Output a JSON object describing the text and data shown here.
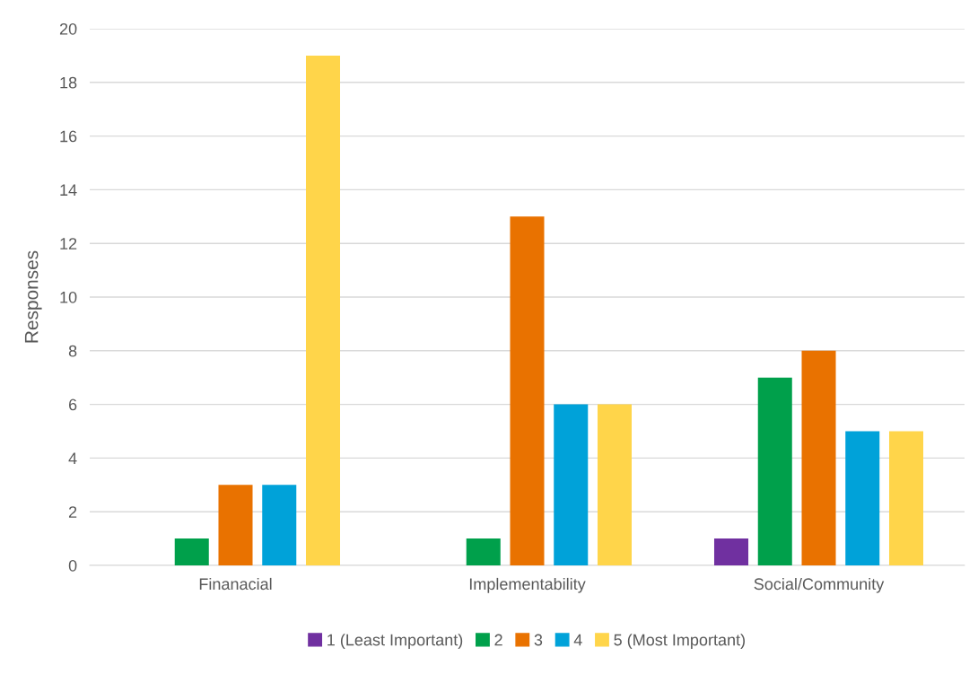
{
  "chart_data": {
    "type": "bar",
    "ylabel": "Responses",
    "categories": [
      "Finanacial",
      "Implementability",
      "Social/Community"
    ],
    "series": [
      {
        "name": "1 (Least Important)",
        "color": "#7030a0",
        "values": [
          0,
          0,
          1
        ]
      },
      {
        "name": "2",
        "color": "#00a04b",
        "values": [
          1,
          1,
          7
        ]
      },
      {
        "name": "3",
        "color": "#e97200",
        "values": [
          3,
          13,
          8
        ]
      },
      {
        "name": "4",
        "color": "#00a2d9",
        "values": [
          3,
          6,
          5
        ]
      },
      {
        "name": "5 (Most Important)",
        "color": "#ffd54a",
        "values": [
          19,
          6,
          5
        ]
      }
    ],
    "ylim": [
      0,
      20
    ],
    "yticks": [
      0,
      2,
      4,
      6,
      8,
      10,
      12,
      14,
      16,
      18,
      20
    ],
    "grid": "y",
    "legend": "bottom"
  }
}
